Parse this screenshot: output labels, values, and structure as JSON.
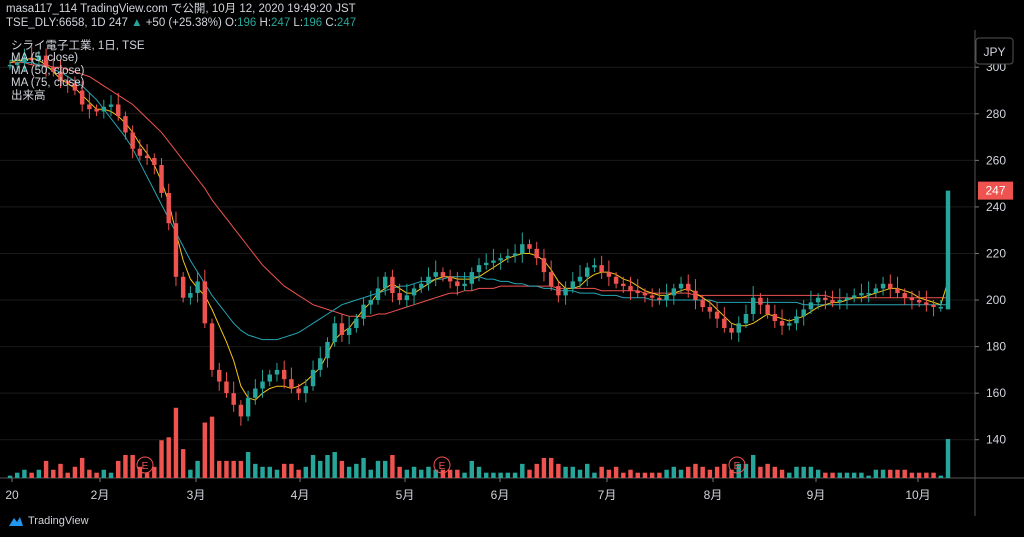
{
  "header": {
    "line1": "masa117_114 TradingView.com で公開, 10月 12, 2020 19:49:20 JST",
    "symbol": "TSE_DLY:6658, 1D",
    "last": "247",
    "arrow": "▲",
    "change": "+50 (+25.38%)",
    "o_label": "O:",
    "o_val": "196",
    "h_label": "H:",
    "h_val": "247",
    "l_label": "L:",
    "l_val": "196",
    "c_label": "C:",
    "c_val": "247"
  },
  "legend": {
    "title": "シライ電子工業, 1日, TSE",
    "ma5": "MA (5, close)",
    "ma50": "MA (50, close)",
    "ma75": "MA (75, close)",
    "volume": "出来高"
  },
  "currency_label": "JPY",
  "last_price_label": "247",
  "brand_name": "TradingView",
  "earnings_marker": "E",
  "colors": {
    "up": "#26a69a",
    "down": "#ef5350",
    "ma5": "#f5c518",
    "ma50": "#26a6b5",
    "ma75": "#ef5350",
    "up_bar": "#26a69a",
    "axis_text": "#d1d4dc"
  },
  "chart_data": {
    "type": "candlestick",
    "y_axis": {
      "ticks": [
        140,
        160,
        180,
        200,
        220,
        240,
        260,
        280,
        300
      ],
      "range": [
        130,
        316
      ]
    },
    "x_axis": {
      "tick_labels": [
        "20",
        "2月",
        "3月",
        "4月",
        "5月",
        "6月",
        "7月",
        "8月",
        "9月",
        "10月"
      ]
    },
    "earnings_events": [
      "2月",
      "5月",
      "8月"
    ],
    "last": {
      "open": 196,
      "high": 247,
      "low": 196,
      "close": 247,
      "change": 50,
      "change_pct": 25.38
    },
    "close": [
      301,
      302,
      304,
      303,
      305,
      300,
      298,
      294,
      293,
      290,
      284,
      282,
      281,
      283,
      284,
      279,
      272,
      265,
      262,
      261,
      258,
      246,
      233,
      210,
      201,
      203,
      208,
      190,
      170,
      165,
      160,
      155,
      150,
      158,
      162,
      165,
      168,
      170,
      166,
      162,
      160,
      163,
      170,
      175,
      182,
      190,
      185,
      188,
      192,
      198,
      200,
      205,
      210,
      203,
      200,
      202,
      205,
      207,
      210,
      212,
      210,
      208,
      206,
      207,
      212,
      215,
      216,
      217,
      218,
      219,
      220,
      224,
      222,
      218,
      212,
      206,
      202,
      205,
      208,
      210,
      214,
      215,
      212,
      210,
      207,
      206,
      204,
      203,
      202,
      201,
      200,
      202,
      205,
      207,
      204,
      200,
      197,
      195,
      192,
      188,
      186,
      190,
      194,
      201,
      198,
      194,
      191,
      189,
      190,
      193,
      196,
      199,
      201,
      200,
      199,
      200,
      201,
      202,
      203,
      203,
      205,
      207,
      205,
      203,
      201,
      200,
      199,
      198,
      197,
      197,
      247
    ],
    "ma5": [
      302,
      303,
      303,
      304,
      303,
      301,
      298,
      295,
      293,
      291,
      288,
      285,
      282,
      282,
      281,
      279,
      276,
      272,
      267,
      263,
      258,
      251,
      242,
      229,
      217,
      209,
      205,
      202,
      196,
      189,
      182,
      174,
      163,
      158,
      157,
      160,
      162,
      163,
      163,
      162,
      163,
      165,
      168,
      171,
      177,
      183,
      186,
      188,
      192,
      196,
      199,
      203,
      205,
      207,
      205,
      203,
      203,
      205,
      207,
      209,
      210,
      210,
      209,
      209,
      209,
      210,
      212,
      214,
      216,
      218,
      219,
      220,
      220,
      219,
      217,
      213,
      208,
      205,
      205,
      206,
      209,
      211,
      212,
      212,
      211,
      209,
      208,
      206,
      204,
      203,
      202,
      202,
      203,
      204,
      205,
      203,
      201,
      199,
      196,
      193,
      190,
      189,
      189,
      190,
      192,
      194,
      193,
      192,
      191,
      192,
      193,
      195,
      197,
      198,
      199,
      199,
      200,
      201,
      201,
      202,
      203,
      204,
      205,
      205,
      204,
      203,
      201,
      200,
      199,
      198,
      208
    ],
    "ma50": [
      303,
      303,
      302,
      302,
      301,
      300,
      299,
      298,
      296,
      294,
      292,
      289,
      286,
      282,
      278,
      274,
      270,
      265,
      259,
      253,
      247,
      241,
      235,
      229,
      223,
      217,
      212,
      207,
      202,
      198,
      194,
      190,
      187,
      185,
      184,
      183,
      183,
      183,
      184,
      185,
      186,
      188,
      190,
      192,
      194,
      196,
      198,
      199,
      200,
      201,
      202,
      203,
      204,
      205,
      206,
      206,
      207,
      208,
      208,
      209,
      209,
      210,
      210,
      210,
      210,
      210,
      209,
      209,
      208,
      208,
      207,
      207,
      206,
      206,
      205,
      205,
      204,
      204,
      204,
      203,
      203,
      203,
      202,
      202,
      202,
      201,
      201,
      201,
      201,
      200,
      200,
      200,
      200,
      200,
      200,
      200,
      200,
      200,
      199,
      199,
      199,
      199,
      199,
      199,
      199,
      199,
      199,
      199,
      199,
      199,
      198,
      198,
      198,
      198,
      198,
      198,
      198,
      198,
      198,
      198,
      198,
      198,
      198,
      198,
      198,
      198,
      198,
      198,
      198,
      198,
      198
    ],
    "ma75": [
      302,
      302,
      302,
      301,
      301,
      301,
      300,
      300,
      299,
      298,
      297,
      296,
      294,
      292,
      290,
      288,
      286,
      284,
      281,
      278,
      275,
      272,
      268,
      264,
      260,
      256,
      252,
      248,
      243,
      239,
      235,
      231,
      227,
      223,
      219,
      215,
      212,
      209,
      206,
      204,
      202,
      200,
      198,
      197,
      196,
      195,
      194,
      193,
      193,
      193,
      193,
      194,
      194,
      195,
      196,
      197,
      198,
      199,
      200,
      201,
      202,
      203,
      203,
      204,
      204,
      205,
      205,
      205,
      206,
      206,
      206,
      206,
      206,
      206,
      206,
      206,
      205,
      205,
      205,
      205,
      205,
      205,
      204,
      204,
      204,
      204,
      204,
      204,
      203,
      203,
      203,
      203,
      203,
      203,
      203,
      202,
      202,
      202,
      202,
      202,
      202,
      202,
      202,
      202,
      202,
      202,
      202,
      202,
      202,
      202,
      202,
      202,
      202,
      202,
      201,
      201,
      201,
      201,
      201,
      201,
      201,
      201,
      201,
      201,
      201,
      201,
      201,
      201,
      201,
      201,
      201
    ]
  }
}
